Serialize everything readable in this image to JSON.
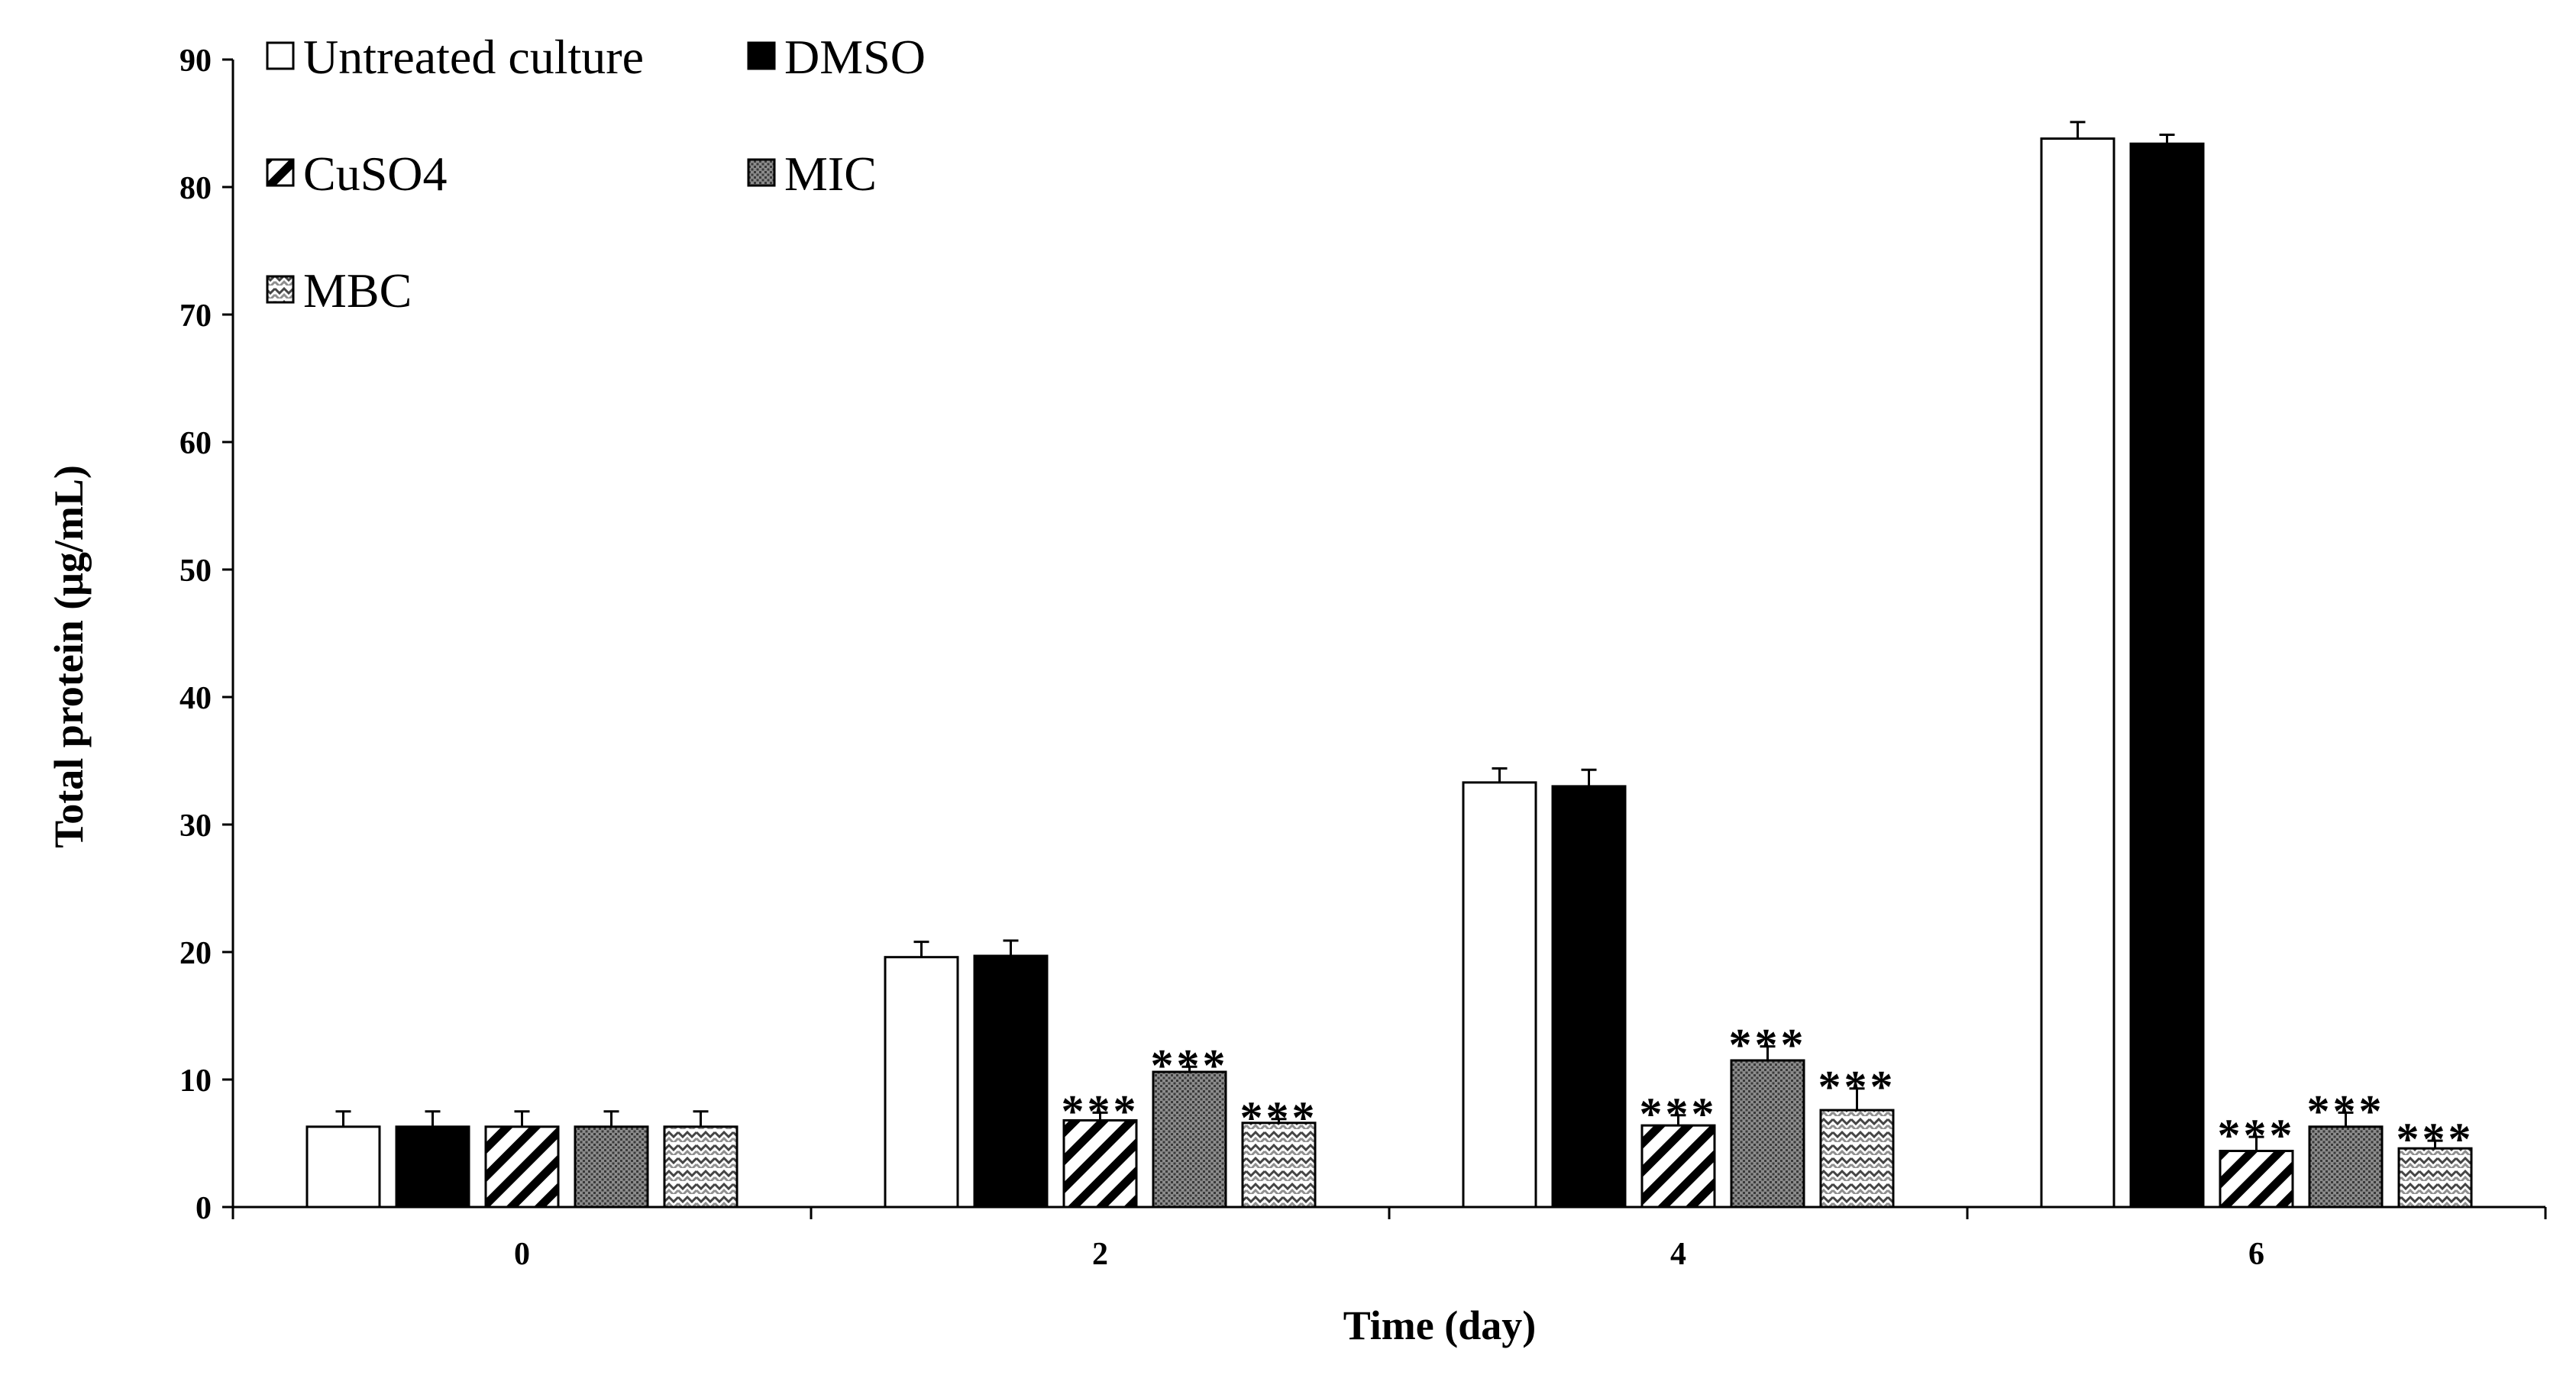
{
  "chart_data": {
    "type": "bar",
    "title": "",
    "xlabel": "Time (day)",
    "ylabel": "Total protein (μg/mL)",
    "ylim": [
      0,
      90
    ],
    "yticks": [
      0,
      10,
      20,
      30,
      40,
      50,
      60,
      70,
      80,
      90
    ],
    "categories": [
      "0",
      "2",
      "4",
      "6"
    ],
    "legend_position": "top-left",
    "grid": false,
    "series": [
      {
        "name": "Untreated culture",
        "pattern": "white",
        "values": [
          6.3,
          19.6,
          33.3,
          83.8
        ],
        "errors": [
          1.2,
          1.2,
          1.1,
          1.3
        ],
        "significance": [
          "",
          "",
          "",
          ""
        ]
      },
      {
        "name": "DMSO",
        "pattern": "black",
        "values": [
          6.3,
          19.7,
          33.0,
          83.4
        ],
        "errors": [
          1.2,
          1.2,
          1.3,
          0.7
        ],
        "significance": [
          "",
          "",
          "",
          ""
        ]
      },
      {
        "name": "CuSO4",
        "pattern": "diagonal",
        "values": [
          6.3,
          6.8,
          6.4,
          4.4
        ],
        "errors": [
          1.2,
          0.6,
          0.8,
          1.1
        ],
        "significance": [
          "",
          "***",
          "***",
          "***"
        ]
      },
      {
        "name": "MIC",
        "pattern": "dots",
        "values": [
          6.3,
          10.6,
          11.5,
          6.3
        ],
        "errors": [
          1.2,
          0.4,
          1.1,
          1.1
        ],
        "significance": [
          "",
          "***",
          "***",
          "***"
        ]
      },
      {
        "name": "MBC",
        "pattern": "zigzag",
        "values": [
          6.3,
          6.6,
          7.6,
          4.6
        ],
        "errors": [
          1.2,
          0.3,
          1.7,
          0.6
        ],
        "significance": [
          "",
          "***",
          "***",
          "***"
        ]
      }
    ]
  }
}
